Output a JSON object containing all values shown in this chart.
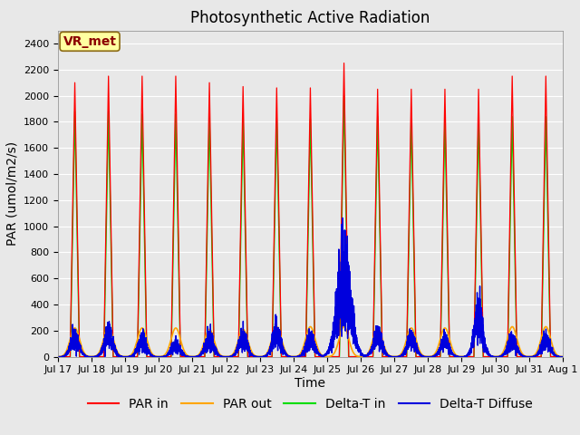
{
  "title": "Photosynthetic Active Radiation",
  "ylabel": "PAR (umol/m2/s)",
  "xlabel": "Time",
  "ylim": [
    0,
    2500
  ],
  "yticks": [
    0,
    200,
    400,
    600,
    800,
    1000,
    1200,
    1400,
    1600,
    1800,
    2000,
    2200,
    2400
  ],
  "xtick_labels": [
    "Jul 17",
    "Jul 18",
    "Jul 19",
    "Jul 20",
    "Jul 21",
    "Jul 22",
    "Jul 23",
    "Jul 24",
    "Jul 25",
    "Jul 26",
    "Jul 27",
    "Jul 28",
    "Jul 29",
    "Jul 30",
    "Jul 31",
    "Aug 1"
  ],
  "colors": {
    "PAR_in": "#FF0000",
    "PAR_out": "#FFA500",
    "Delta_T_in": "#00DD00",
    "Delta_T_Diffuse": "#0000DD"
  },
  "annotation_box": "VR_met",
  "annotation_color": "#8B0000",
  "annotation_box_edge": "#8B6914",
  "annotation_box_face": "#FFFFA0",
  "background_color": "#E8E8E8",
  "legend_labels": [
    "PAR in",
    "PAR out",
    "Delta-T in",
    "Delta-T Diffuse"
  ],
  "num_days": 15,
  "daily_peak_PAR_in": [
    2100,
    2150,
    2150,
    2150,
    2100,
    2070,
    2060,
    2060,
    2250,
    2050,
    2050,
    2050,
    2050,
    2150,
    2150
  ],
  "daily_peak_PAR_out": [
    220,
    230,
    220,
    220,
    210,
    210,
    230,
    230,
    230,
    220,
    220,
    220,
    220,
    230,
    230
  ],
  "daily_peak_Delta_T_in": [
    1880,
    1880,
    1860,
    1860,
    1840,
    1820,
    1830,
    1820,
    2000,
    1840,
    1820,
    1820,
    1820,
    1840,
    1840
  ],
  "daily_peak_Delta_T_diff": [
    130,
    160,
    120,
    90,
    130,
    130,
    170,
    130,
    620,
    160,
    130,
    110,
    300,
    120,
    120
  ],
  "title_fontsize": 12,
  "label_fontsize": 10,
  "tick_fontsize": 8,
  "legend_fontsize": 10
}
